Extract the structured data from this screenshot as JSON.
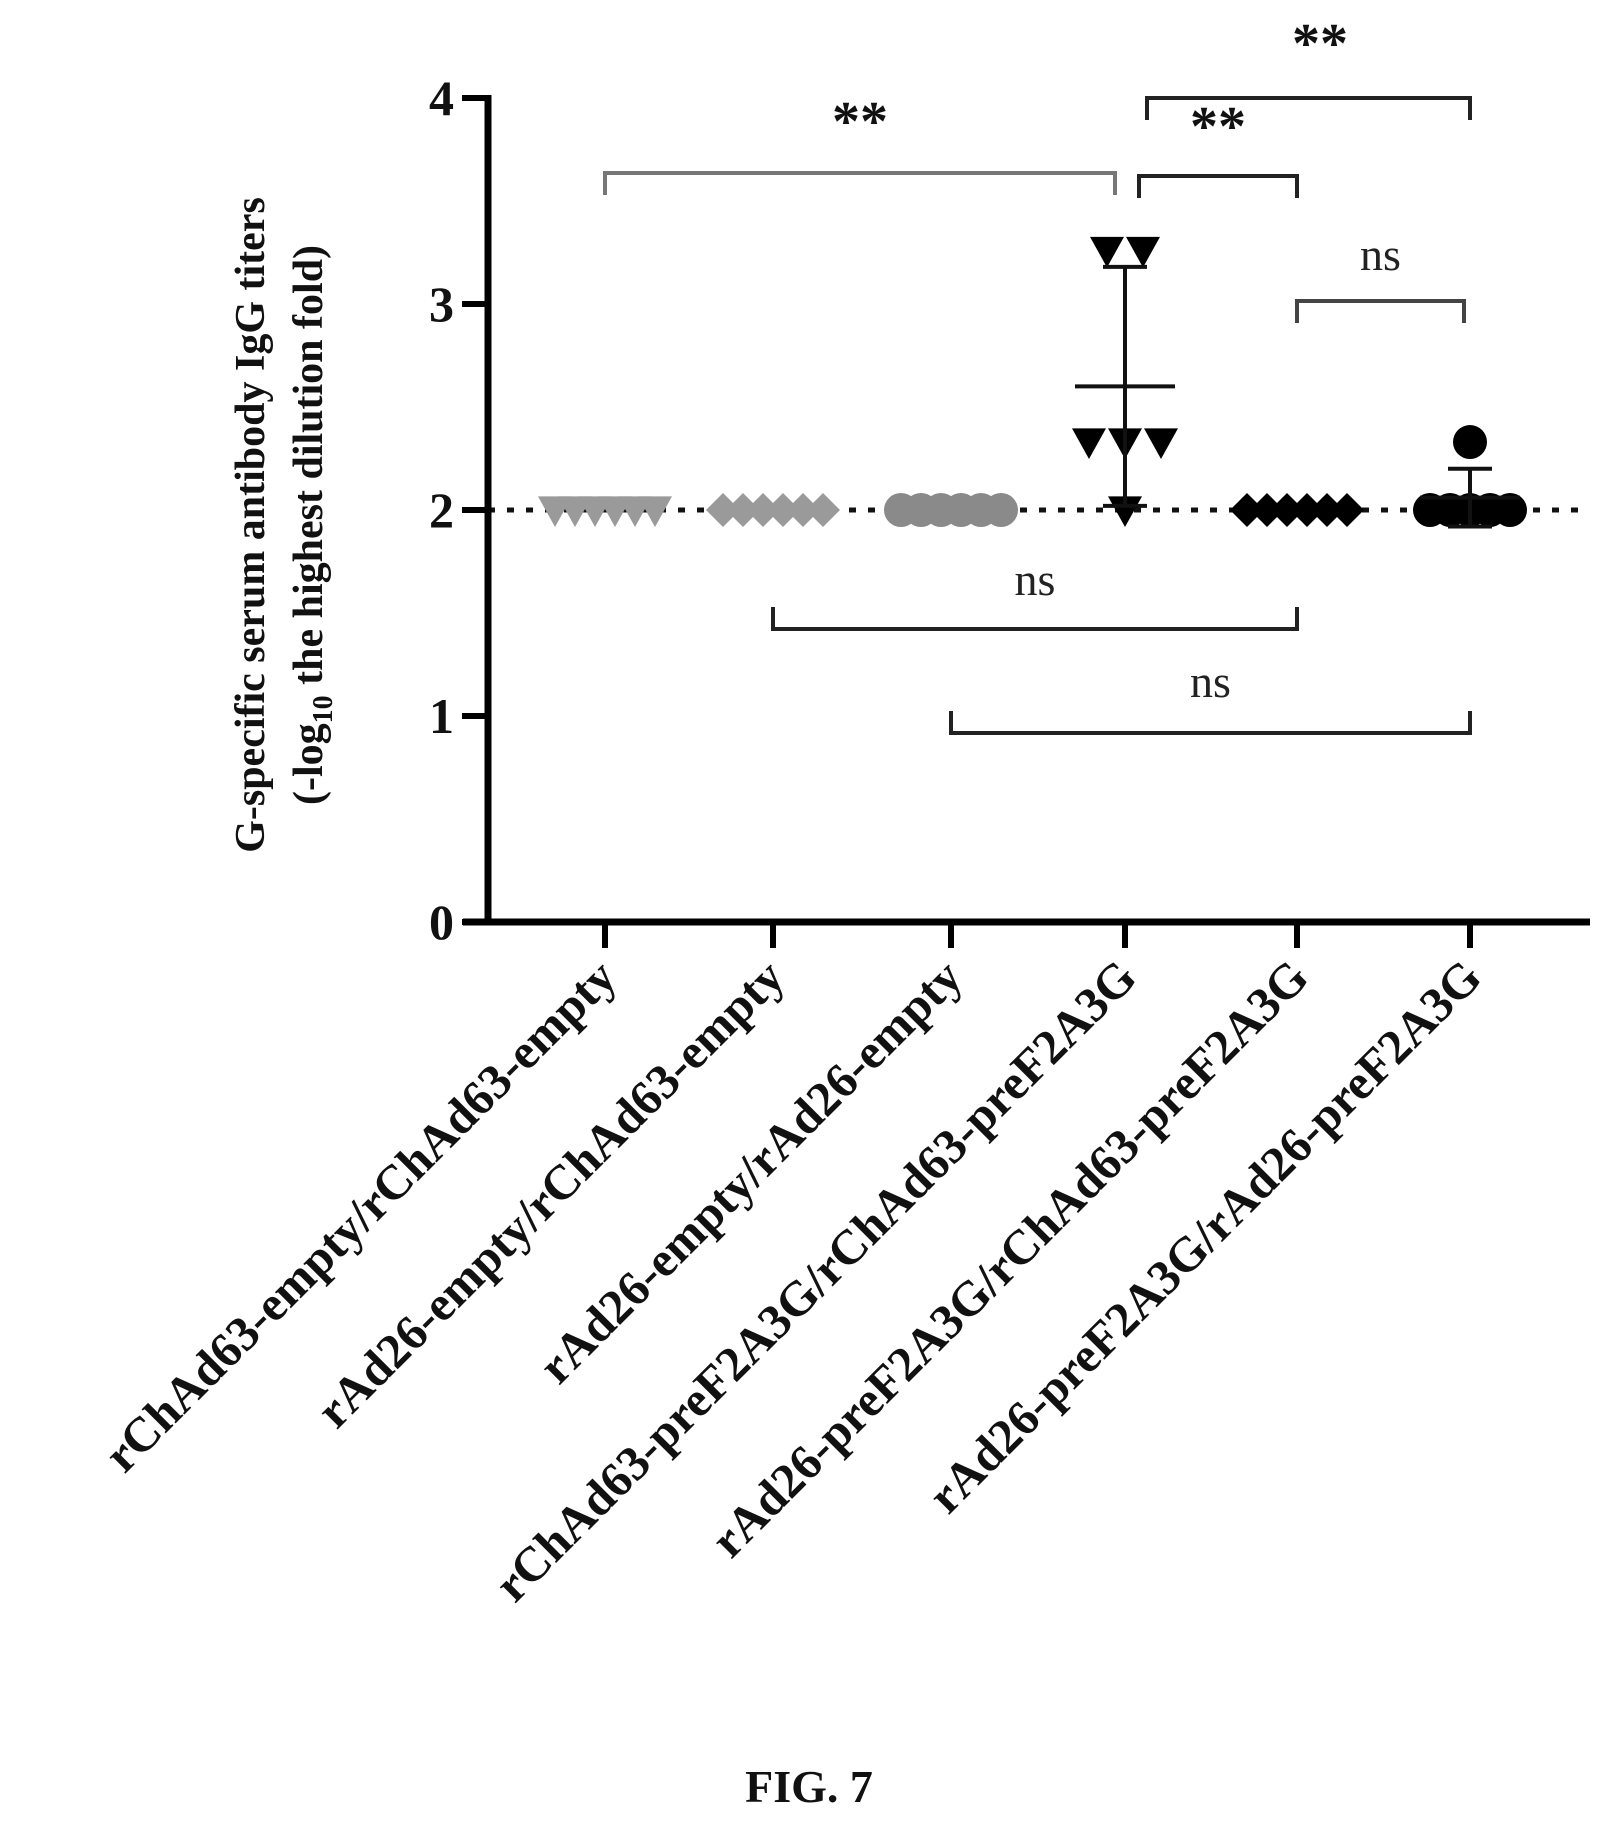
{
  "chart_data": {
    "type": "scatter",
    "ylabel_line1": "G-specific serum  antibody IgG titers",
    "ylabel_line2_prefix": "(-log",
    "ylabel_line2_sub": "10",
    "ylabel_line2_suffix": " the highest dilution fold)",
    "ylim": [
      0,
      4
    ],
    "yticks": [
      "0",
      "1",
      "2",
      "3",
      "4"
    ],
    "reference_line": 2,
    "categories": [
      "rChAd63-empty/rChAd63-empty",
      "rAd26-empty/rChAd63-empty",
      "rAd26-empty/rAd26-empty",
      "rChAd63-preF2A3G/rChAd63-preF2A3G",
      "rAd26-preF2A3G/rChAd63-preF2A3G",
      "rAd26-preF2A3G/rAd26-preF2A3G"
    ],
    "series": [
      {
        "values": [
          2,
          2,
          2,
          2,
          2,
          2
        ],
        "marker": "triangle-down",
        "color": "#9a9a9a",
        "mean": 2,
        "sd": 0
      },
      {
        "values": [
          2,
          2,
          2,
          2,
          2,
          2
        ],
        "marker": "diamond",
        "color": "#9a9a9a",
        "mean": 2,
        "sd": 0
      },
      {
        "values": [
          2,
          2,
          2,
          2,
          2,
          2
        ],
        "marker": "circle",
        "color": "#8a8a8a",
        "mean": 2,
        "sd": 0
      },
      {
        "values": [
          3.26,
          3.26,
          2.33,
          2.33,
          2.33,
          2.0
        ],
        "marker": "triangle-down",
        "color": "#000000",
        "mean": 2.6,
        "sd": 0.58
      },
      {
        "values": [
          2,
          2,
          2,
          2,
          2,
          2
        ],
        "marker": "diamond",
        "color": "#000000",
        "mean": 2,
        "sd": 0
      },
      {
        "values": [
          2.33,
          2,
          2,
          2,
          2,
          2
        ],
        "marker": "circle",
        "color": "#000000",
        "mean": 2.06,
        "sd": 0.14
      }
    ],
    "comparisons": [
      {
        "from": 0,
        "to": 3,
        "label": "**"
      },
      {
        "from": 3,
        "to": 4,
        "label": "**"
      },
      {
        "from": 3,
        "to": 5,
        "label": "**"
      },
      {
        "from": 4,
        "to": 5,
        "label": "ns"
      },
      {
        "from": 1,
        "to": 4,
        "label": "ns"
      },
      {
        "from": 2,
        "to": 5,
        "label": "ns"
      }
    ],
    "caption": "FIG. 7"
  }
}
